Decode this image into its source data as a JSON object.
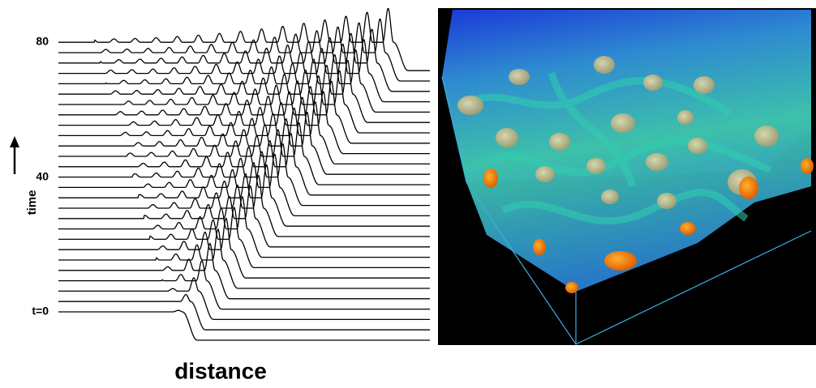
{
  "left_panel": {
    "y_labels": [
      "80",
      "40",
      "t=0"
    ],
    "y_axis_label": "time",
    "x_axis_label": "distance"
  }
}
